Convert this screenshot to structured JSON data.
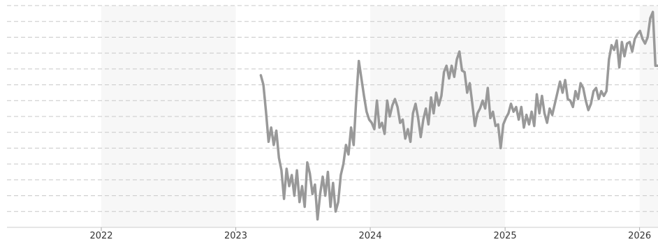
{
  "chart_data": {
    "type": "line",
    "title": "",
    "xlabel": "",
    "ylabel": "",
    "grid": true,
    "legend": "none",
    "x_ticks": [
      "2022",
      "2023",
      "2024",
      "2025",
      "2026"
    ],
    "xlim": [
      "2021-04-20",
      "2026-02-20"
    ],
    "ylim": [
      0,
      14
    ],
    "series": [
      {
        "color": "#999999",
        "points": [
          [
            "2023-03-10",
            9.6
          ],
          [
            "2023-03-17",
            9.0
          ],
          [
            "2023-03-24",
            7.3
          ],
          [
            "2023-03-31",
            5.4
          ],
          [
            "2023-04-07",
            6.3
          ],
          [
            "2023-04-14",
            5.2
          ],
          [
            "2023-04-21",
            6.1
          ],
          [
            "2023-04-28",
            4.4
          ],
          [
            "2023-05-05",
            3.6
          ],
          [
            "2023-05-12",
            1.8
          ],
          [
            "2023-05-19",
            3.7
          ],
          [
            "2023-05-26",
            2.6
          ],
          [
            "2023-06-02",
            3.3
          ],
          [
            "2023-06-09",
            2.0
          ],
          [
            "2023-06-16",
            3.6
          ],
          [
            "2023-06-23",
            1.6
          ],
          [
            "2023-06-30",
            2.6
          ],
          [
            "2023-07-07",
            1.3
          ],
          [
            "2023-07-14",
            4.1
          ],
          [
            "2023-07-21",
            3.4
          ],
          [
            "2023-07-28",
            2.1
          ],
          [
            "2023-08-04",
            2.7
          ],
          [
            "2023-08-11",
            0.5
          ],
          [
            "2023-08-18",
            2.1
          ],
          [
            "2023-08-25",
            3.2
          ],
          [
            "2023-09-01",
            2.0
          ],
          [
            "2023-09-08",
            3.5
          ],
          [
            "2023-09-15",
            1.3
          ],
          [
            "2023-09-22",
            2.8
          ],
          [
            "2023-09-29",
            1.0
          ],
          [
            "2023-10-06",
            1.6
          ],
          [
            "2023-10-13",
            3.3
          ],
          [
            "2023-10-20",
            4.0
          ],
          [
            "2023-10-27",
            5.2
          ],
          [
            "2023-11-03",
            4.6
          ],
          [
            "2023-11-10",
            6.3
          ],
          [
            "2023-11-17",
            5.2
          ],
          [
            "2023-11-24",
            8.1
          ],
          [
            "2023-12-01",
            10.5
          ],
          [
            "2023-12-08",
            9.4
          ],
          [
            "2023-12-15",
            8.3
          ],
          [
            "2023-12-22",
            7.3
          ],
          [
            "2023-12-29",
            6.8
          ],
          [
            "2024-01-05",
            6.6
          ],
          [
            "2024-01-12",
            6.2
          ],
          [
            "2024-01-19",
            8.0
          ],
          [
            "2024-01-26",
            6.3
          ],
          [
            "2024-02-02",
            6.6
          ],
          [
            "2024-02-09",
            5.9
          ],
          [
            "2024-02-16",
            8.0
          ],
          [
            "2024-02-23",
            7.0
          ],
          [
            "2024-03-01",
            7.7
          ],
          [
            "2024-03-08",
            8.1
          ],
          [
            "2024-03-15",
            7.6
          ],
          [
            "2024-03-22",
            6.6
          ],
          [
            "2024-03-29",
            6.8
          ],
          [
            "2024-04-05",
            5.6
          ],
          [
            "2024-04-12",
            6.2
          ],
          [
            "2024-04-19",
            5.4
          ],
          [
            "2024-04-26",
            7.2
          ],
          [
            "2024-05-03",
            7.8
          ],
          [
            "2024-05-10",
            6.9
          ],
          [
            "2024-05-17",
            5.7
          ],
          [
            "2024-05-24",
            6.8
          ],
          [
            "2024-05-31",
            7.5
          ],
          [
            "2024-06-07",
            6.5
          ],
          [
            "2024-06-14",
            8.2
          ],
          [
            "2024-06-21",
            7.2
          ],
          [
            "2024-06-28",
            8.5
          ],
          [
            "2024-07-05",
            7.7
          ],
          [
            "2024-07-12",
            8.3
          ],
          [
            "2024-07-19",
            9.8
          ],
          [
            "2024-07-26",
            10.2
          ],
          [
            "2024-08-02",
            9.4
          ],
          [
            "2024-08-09",
            10.2
          ],
          [
            "2024-08-16",
            9.5
          ],
          [
            "2024-08-23",
            10.6
          ],
          [
            "2024-08-30",
            11.1
          ],
          [
            "2024-09-06",
            9.9
          ],
          [
            "2024-09-13",
            9.8
          ],
          [
            "2024-09-20",
            8.5
          ],
          [
            "2024-09-27",
            9.1
          ],
          [
            "2024-10-04",
            7.8
          ],
          [
            "2024-10-11",
            6.4
          ],
          [
            "2024-10-18",
            7.2
          ],
          [
            "2024-10-25",
            7.5
          ],
          [
            "2024-11-01",
            8.0
          ],
          [
            "2024-11-08",
            7.5
          ],
          [
            "2024-11-15",
            8.8
          ],
          [
            "2024-11-22",
            6.9
          ],
          [
            "2024-11-29",
            7.3
          ],
          [
            "2024-12-06",
            6.4
          ],
          [
            "2024-12-13",
            6.5
          ],
          [
            "2024-12-20",
            5.0
          ],
          [
            "2024-12-27",
            6.5
          ],
          [
            "2025-01-03",
            6.9
          ],
          [
            "2025-01-10",
            7.2
          ],
          [
            "2025-01-17",
            7.8
          ],
          [
            "2025-01-24",
            7.3
          ],
          [
            "2025-01-31",
            7.6
          ],
          [
            "2025-02-07",
            6.8
          ],
          [
            "2025-02-14",
            7.6
          ],
          [
            "2025-02-21",
            6.3
          ],
          [
            "2025-02-28",
            7.1
          ],
          [
            "2025-03-07",
            6.5
          ],
          [
            "2025-03-14",
            7.3
          ],
          [
            "2025-03-21",
            6.4
          ],
          [
            "2025-03-28",
            8.4
          ],
          [
            "2025-04-04",
            7.2
          ],
          [
            "2025-04-11",
            8.3
          ],
          [
            "2025-04-18",
            7.2
          ],
          [
            "2025-04-25",
            6.6
          ],
          [
            "2025-05-02",
            7.5
          ],
          [
            "2025-05-09",
            7.1
          ],
          [
            "2025-05-16",
            7.8
          ],
          [
            "2025-05-23",
            8.5
          ],
          [
            "2025-05-30",
            9.2
          ],
          [
            "2025-06-06",
            8.5
          ],
          [
            "2025-06-13",
            9.3
          ],
          [
            "2025-06-20",
            8.1
          ],
          [
            "2025-06-27",
            8.0
          ],
          [
            "2025-07-04",
            7.6
          ],
          [
            "2025-07-11",
            8.6
          ],
          [
            "2025-07-18",
            8.1
          ],
          [
            "2025-07-25",
            9.1
          ],
          [
            "2025-08-01",
            8.8
          ],
          [
            "2025-08-08",
            8.0
          ],
          [
            "2025-08-15",
            7.4
          ],
          [
            "2025-08-22",
            7.8
          ],
          [
            "2025-08-29",
            8.6
          ],
          [
            "2025-09-05",
            8.8
          ],
          [
            "2025-09-12",
            8.1
          ],
          [
            "2025-09-19",
            8.6
          ],
          [
            "2025-09-26",
            8.3
          ],
          [
            "2025-10-03",
            8.6
          ],
          [
            "2025-10-10",
            10.6
          ],
          [
            "2025-10-17",
            11.5
          ],
          [
            "2025-10-24",
            11.2
          ],
          [
            "2025-10-31",
            11.8
          ],
          [
            "2025-11-07",
            10.1
          ],
          [
            "2025-11-14",
            11.7
          ],
          [
            "2025-11-21",
            10.8
          ],
          [
            "2025-11-28",
            11.6
          ],
          [
            "2025-12-05",
            11.7
          ],
          [
            "2025-12-12",
            11.1
          ],
          [
            "2025-12-19",
            11.9
          ],
          [
            "2025-12-26",
            12.2
          ],
          [
            "2026-01-02",
            12.4
          ],
          [
            "2026-01-09",
            11.9
          ],
          [
            "2026-01-16",
            11.6
          ],
          [
            "2026-01-23",
            12.0
          ],
          [
            "2026-01-30",
            13.2
          ],
          [
            "2026-02-06",
            13.6
          ],
          [
            "2026-02-13",
            10.2
          ],
          [
            "2026-02-20",
            10.2
          ]
        ]
      }
    ]
  }
}
